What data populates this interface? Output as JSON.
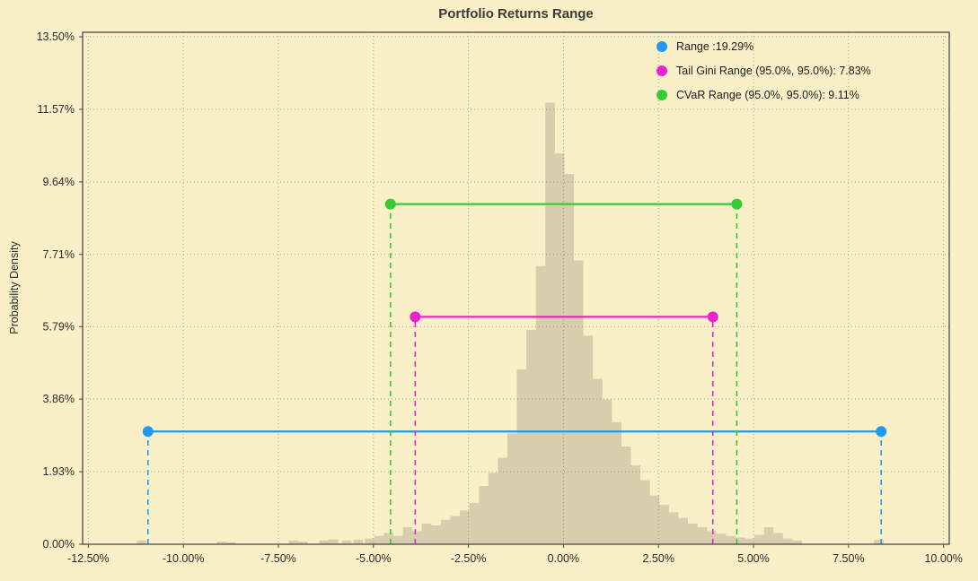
{
  "figure": {
    "background": "#FAF0C8",
    "grid_color": "#a8a28f",
    "bar_color": "rgba(123,119,103,0.28)",
    "border_color": "#4a4a4a",
    "text_color": "#2b2b2b"
  },
  "chart_data": {
    "type": "bar",
    "subtype": "histogram-with-range-lines",
    "title": "Portfolio Returns Range",
    "xlabel": "",
    "ylabel": "Probability Density",
    "xlim": [
      -12.65,
      10.15
    ],
    "ylim": [
      0,
      13.62
    ],
    "grid": "dotted",
    "legend_position": "upper right",
    "x_ticks": [
      {
        "v": -12.5,
        "label": "-12.50%"
      },
      {
        "v": -10.0,
        "label": "-10.00%"
      },
      {
        "v": -7.5,
        "label": "-7.50%"
      },
      {
        "v": -5.0,
        "label": "-5.00%"
      },
      {
        "v": -2.5,
        "label": "-2.50%"
      },
      {
        "v": 0.0,
        "label": "0.00%"
      },
      {
        "v": 2.5,
        "label": "2.50%"
      },
      {
        "v": 5.0,
        "label": "5.00%"
      },
      {
        "v": 7.5,
        "label": "7.50%"
      },
      {
        "v": 10.0,
        "label": "10.00%"
      }
    ],
    "y_ticks": [
      {
        "v": 0.0,
        "label": "0.00%"
      },
      {
        "v": 1.93,
        "label": "1.93%"
      },
      {
        "v": 3.86,
        "label": "3.86%"
      },
      {
        "v": 5.79,
        "label": "5.79%"
      },
      {
        "v": 7.71,
        "label": "7.71%"
      },
      {
        "v": 9.64,
        "label": "9.64%"
      },
      {
        "v": 11.57,
        "label": "11.57%"
      },
      {
        "v": 13.5,
        "label": "13.50%"
      }
    ],
    "bin_width": 0.25,
    "bins": [
      [
        -11.1,
        0.1
      ],
      [
        -9.0,
        0.07
      ],
      [
        -8.75,
        0.05
      ],
      [
        -7.1,
        0.1
      ],
      [
        -6.85,
        0.07
      ],
      [
        -6.3,
        0.1
      ],
      [
        -6.05,
        0.13
      ],
      [
        -5.7,
        0.1
      ],
      [
        -5.4,
        0.12
      ],
      [
        -5.1,
        0.15
      ],
      [
        -4.85,
        0.22
      ],
      [
        -4.6,
        0.3
      ],
      [
        -4.35,
        0.22
      ],
      [
        -4.1,
        0.45
      ],
      [
        -3.85,
        0.35
      ],
      [
        -3.6,
        0.55
      ],
      [
        -3.35,
        0.5
      ],
      [
        -3.1,
        0.65
      ],
      [
        -2.85,
        0.75
      ],
      [
        -2.6,
        0.9
      ],
      [
        -2.35,
        1.1
      ],
      [
        -2.1,
        1.55
      ],
      [
        -1.85,
        1.9
      ],
      [
        -1.6,
        2.3
      ],
      [
        -1.35,
        2.95
      ],
      [
        -1.1,
        4.65
      ],
      [
        -0.85,
        5.7
      ],
      [
        -0.6,
        7.4
      ],
      [
        -0.35,
        11.75
      ],
      [
        -0.1,
        10.4
      ],
      [
        0.15,
        9.85
      ],
      [
        0.4,
        7.55
      ],
      [
        0.65,
        5.55
      ],
      [
        0.9,
        4.4
      ],
      [
        1.15,
        3.85
      ],
      [
        1.4,
        3.25
      ],
      [
        1.65,
        2.6
      ],
      [
        1.9,
        2.1
      ],
      [
        2.15,
        1.7
      ],
      [
        2.4,
        1.3
      ],
      [
        2.65,
        1.05
      ],
      [
        2.9,
        0.85
      ],
      [
        3.15,
        0.7
      ],
      [
        3.4,
        0.55
      ],
      [
        3.65,
        0.45
      ],
      [
        3.9,
        0.35
      ],
      [
        4.15,
        0.28
      ],
      [
        4.4,
        0.22
      ],
      [
        4.65,
        0.18
      ],
      [
        4.9,
        0.15
      ],
      [
        5.15,
        0.25
      ],
      [
        5.4,
        0.45
      ],
      [
        5.65,
        0.3
      ],
      [
        5.9,
        0.15
      ],
      [
        6.15,
        0.1
      ],
      [
        8.3,
        0.12
      ]
    ],
    "ranges": [
      {
        "key": "range",
        "label": "Range :19.29%",
        "color": "#1e9bf0",
        "y": 3.0,
        "x1": -10.93,
        "x2": 8.36
      },
      {
        "key": "tail-gini-range",
        "label": "Tail Gini Range (95.0%, 95.0%): 7.83%",
        "color": "#ee22cc",
        "y": 6.05,
        "x1": -3.9,
        "x2": 3.93
      },
      {
        "key": "cvar-range",
        "label": "CVaR Range (95.0%, 95.0%): 9.11%",
        "color": "#32cd32",
        "y": 9.05,
        "x1": -4.55,
        "x2": 4.56
      }
    ],
    "legend": {
      "entries": [
        {
          "key": "range",
          "label": "Range :19.29%",
          "color": "#1e9bf0"
        },
        {
          "key": "tail-gini-range",
          "label": "Tail Gini Range (95.0%, 95.0%): 7.83%",
          "color": "#ee22cc"
        },
        {
          "key": "cvar-range",
          "label": "CVaR Range (95.0%, 95.0%): 9.11%",
          "color": "#32cd32"
        }
      ]
    }
  }
}
